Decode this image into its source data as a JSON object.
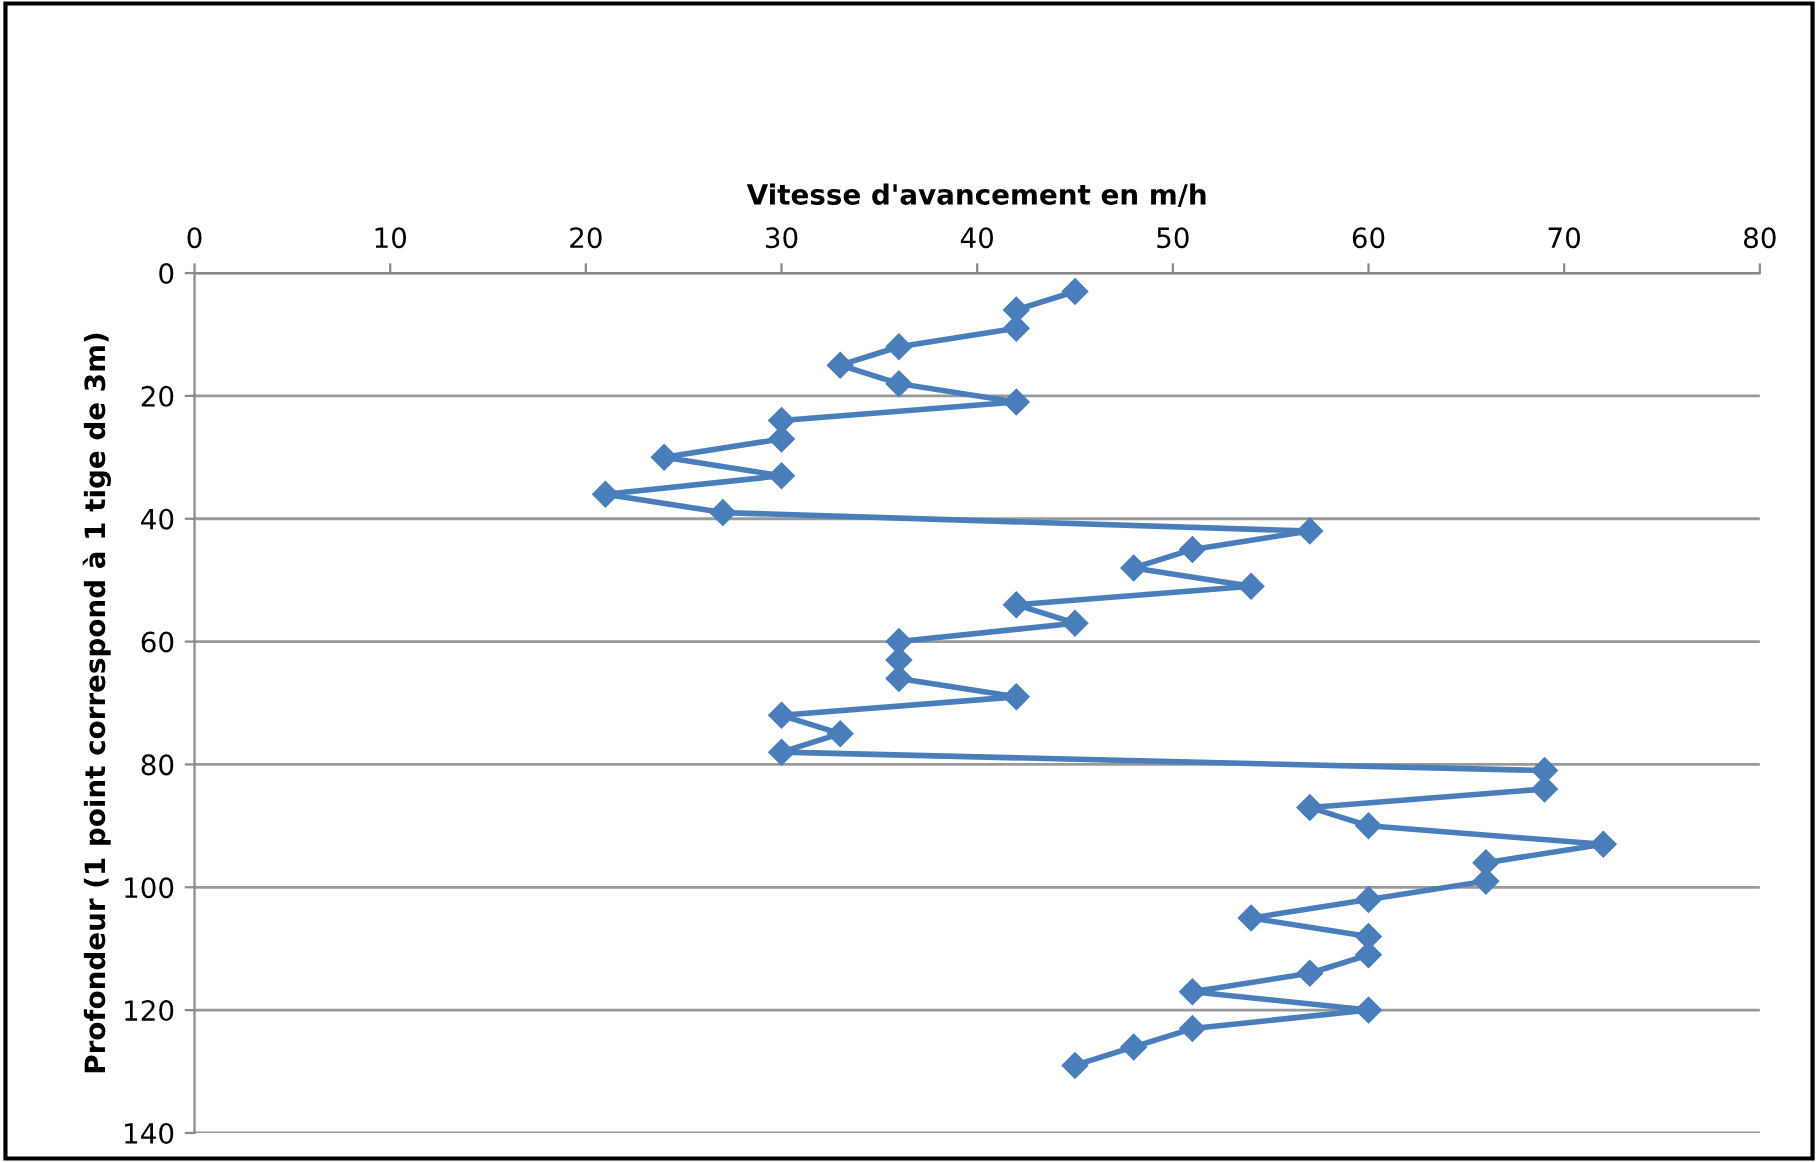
{
  "chart_data": {
    "type": "line",
    "xlabel": "Vitesse d'avancement en m/h",
    "ylabel": "Profondeur (1 point correspond à 1 tige de 3m)",
    "x": [
      45,
      42,
      42,
      36,
      33,
      36,
      42,
      30,
      30,
      24,
      30,
      21,
      27,
      57,
      51,
      48,
      54,
      42,
      45,
      36,
      36,
      36,
      42,
      30,
      33,
      30,
      69,
      69,
      57,
      60,
      72,
      66,
      66,
      60,
      54,
      60,
      60,
      57,
      51,
      60,
      51,
      48,
      45
    ],
    "values": [
      3,
      6,
      9,
      12,
      15,
      18,
      21,
      24,
      27,
      30,
      33,
      36,
      39,
      42,
      45,
      48,
      51,
      54,
      57,
      60,
      63,
      66,
      69,
      72,
      75,
      78,
      81,
      84,
      87,
      90,
      93,
      96,
      99,
      102,
      105,
      108,
      111,
      114,
      117,
      120,
      123,
      126,
      129
    ],
    "color": "#4a7ebb",
    "marker": "diamond",
    "line_style": "solid",
    "xlim": [
      0,
      80
    ],
    "xticks": [
      0,
      10,
      20,
      30,
      40,
      50,
      60,
      70,
      80
    ],
    "ylim": [
      140,
      0
    ],
    "yticks": [
      0,
      20,
      40,
      60,
      80,
      100,
      120,
      140
    ],
    "grid": "y",
    "legend": false
  }
}
